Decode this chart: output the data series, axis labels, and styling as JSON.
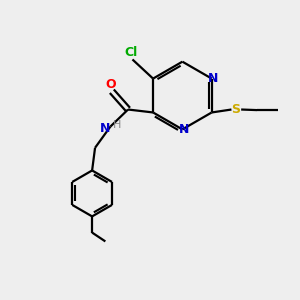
{
  "bg_color": "#eeeeee",
  "bond_color": "#000000",
  "colors": {
    "N": "#0000cc",
    "O": "#ff0000",
    "S": "#ccaa00",
    "Cl": "#00aa00",
    "H": "#888888",
    "C": "#000000"
  }
}
